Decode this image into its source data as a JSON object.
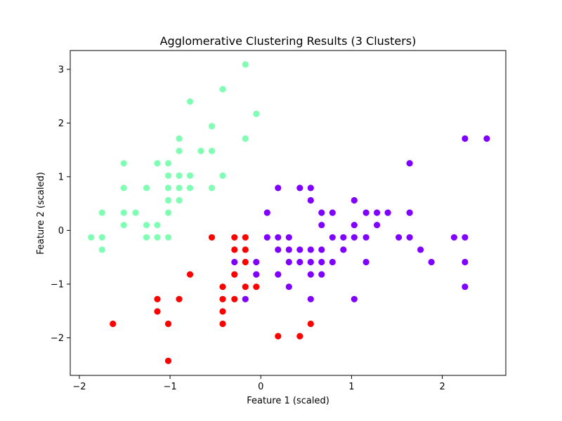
{
  "chart_data": {
    "type": "scatter",
    "title": "Agglomerative Clustering Results (3 Clusters)",
    "xlabel": "Feature 1 (scaled)",
    "ylabel": "Feature 2 (scaled)",
    "xlim": [
      -2.1,
      2.7
    ],
    "ylim": [
      -2.7,
      3.35
    ],
    "xticks": [
      -2,
      -1,
      0,
      1,
      2
    ],
    "yticks": [
      -2,
      -1,
      0,
      1,
      2,
      3
    ],
    "xtick_labels": [
      "−2",
      "−1",
      "0",
      "1",
      "2"
    ],
    "ytick_labels": [
      "−2",
      "−1",
      "0",
      "1",
      "2",
      "3"
    ],
    "grid": false,
    "legend": "none",
    "series": [
      {
        "color": "#80ffb4",
        "points": [
          [
            -0.17,
            3.09
          ],
          [
            -0.42,
            2.63
          ],
          [
            -0.05,
            2.17
          ],
          [
            -0.78,
            2.4
          ],
          [
            -0.54,
            1.94
          ],
          [
            -0.9,
            1.71
          ],
          [
            -0.17,
            1.71
          ],
          [
            -0.9,
            1.48
          ],
          [
            -0.66,
            1.48
          ],
          [
            -0.54,
            1.48
          ],
          [
            -1.51,
            1.25
          ],
          [
            -1.14,
            1.25
          ],
          [
            -1.02,
            1.25
          ],
          [
            -1.02,
            1.02
          ],
          [
            -0.9,
            1.02
          ],
          [
            -0.78,
            1.02
          ],
          [
            -0.42,
            1.02
          ],
          [
            -1.51,
            0.79
          ],
          [
            -1.26,
            0.79
          ],
          [
            -1.02,
            0.79
          ],
          [
            -0.9,
            0.79
          ],
          [
            -0.78,
            0.79
          ],
          [
            -0.54,
            0.79
          ],
          [
            -1.02,
            0.56
          ],
          [
            -0.9,
            0.56
          ],
          [
            -1.75,
            0.33
          ],
          [
            -1.51,
            0.33
          ],
          [
            -1.38,
            0.33
          ],
          [
            -1.02,
            0.33
          ],
          [
            -1.51,
            0.1
          ],
          [
            -1.26,
            0.1
          ],
          [
            -1.14,
            0.1
          ],
          [
            -1.87,
            -0.13
          ],
          [
            -1.75,
            -0.13
          ],
          [
            -1.26,
            -0.13
          ],
          [
            -1.14,
            -0.13
          ],
          [
            -1.02,
            -0.13
          ],
          [
            -1.75,
            -0.36
          ]
        ]
      },
      {
        "color": "#8000ff",
        "points": [
          [
            2.25,
            1.71
          ],
          [
            2.49,
            1.71
          ],
          [
            1.64,
            1.25
          ],
          [
            0.19,
            0.79
          ],
          [
            0.43,
            0.79
          ],
          [
            0.55,
            0.79
          ],
          [
            0.55,
            0.56
          ],
          [
            1.03,
            0.56
          ],
          [
            0.07,
            0.33
          ],
          [
            0.67,
            0.33
          ],
          [
            0.79,
            0.33
          ],
          [
            1.16,
            0.33
          ],
          [
            1.28,
            0.33
          ],
          [
            1.4,
            0.33
          ],
          [
            1.64,
            0.33
          ],
          [
            0.67,
            0.1
          ],
          [
            1.03,
            0.1
          ],
          [
            1.28,
            0.1
          ],
          [
            0.07,
            -0.13
          ],
          [
            0.19,
            -0.13
          ],
          [
            0.31,
            -0.13
          ],
          [
            0.79,
            -0.13
          ],
          [
            0.91,
            -0.13
          ],
          [
            1.03,
            -0.13
          ],
          [
            1.16,
            -0.13
          ],
          [
            1.52,
            -0.13
          ],
          [
            1.64,
            -0.13
          ],
          [
            2.13,
            -0.13
          ],
          [
            2.25,
            -0.13
          ],
          [
            0.19,
            -0.36
          ],
          [
            0.31,
            -0.36
          ],
          [
            0.43,
            -0.36
          ],
          [
            0.55,
            -0.36
          ],
          [
            0.67,
            -0.36
          ],
          [
            0.91,
            -0.36
          ],
          [
            1.76,
            -0.36
          ],
          [
            -0.29,
            -0.59
          ],
          [
            -0.05,
            -0.59
          ],
          [
            0.31,
            -0.59
          ],
          [
            0.43,
            -0.59
          ],
          [
            0.55,
            -0.59
          ],
          [
            0.67,
            -0.59
          ],
          [
            0.79,
            -0.59
          ],
          [
            1.16,
            -0.59
          ],
          [
            1.88,
            -0.59
          ],
          [
            2.25,
            -0.59
          ],
          [
            -0.05,
            -0.82
          ],
          [
            0.19,
            -0.82
          ],
          [
            0.55,
            -0.82
          ],
          [
            0.67,
            -0.82
          ],
          [
            0.31,
            -1.05
          ],
          [
            2.25,
            -1.05
          ],
          [
            -0.17,
            -1.28
          ],
          [
            0.55,
            -1.28
          ],
          [
            1.03,
            -1.28
          ]
        ]
      },
      {
        "color": "#ff0000",
        "points": [
          [
            -0.54,
            -0.13
          ],
          [
            -0.29,
            -0.13
          ],
          [
            -0.17,
            -0.13
          ],
          [
            -0.29,
            -0.36
          ],
          [
            -0.17,
            -0.36
          ],
          [
            -0.17,
            -0.59
          ],
          [
            -0.78,
            -0.82
          ],
          [
            -0.29,
            -0.82
          ],
          [
            -0.42,
            -1.05
          ],
          [
            -0.17,
            -1.05
          ],
          [
            -0.05,
            -1.05
          ],
          [
            -1.14,
            -1.28
          ],
          [
            -0.9,
            -1.28
          ],
          [
            -0.42,
            -1.28
          ],
          [
            -0.29,
            -1.28
          ],
          [
            -1.14,
            -1.51
          ],
          [
            -0.42,
            -1.51
          ],
          [
            -1.63,
            -1.74
          ],
          [
            -1.02,
            -1.74
          ],
          [
            -0.42,
            -1.74
          ],
          [
            0.55,
            -1.74
          ],
          [
            0.19,
            -1.97
          ],
          [
            0.43,
            -1.97
          ],
          [
            -1.02,
            -2.43
          ]
        ]
      }
    ]
  }
}
